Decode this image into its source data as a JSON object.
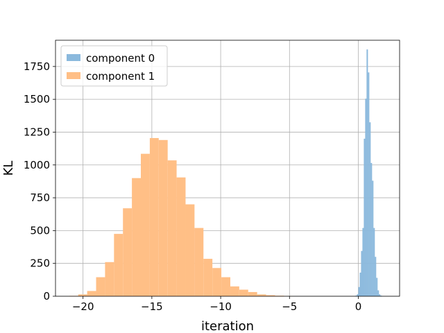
{
  "chart_data": {
    "type": "histogram",
    "xlabel": "iteration",
    "ylabel": "KL",
    "xlim": [
      -22,
      3
    ],
    "ylim": [
      0,
      1950
    ],
    "grid": true,
    "legend_position": "top-left",
    "x_ticks": [
      -20,
      -15,
      -10,
      -5,
      0
    ],
    "y_ticks": [
      0,
      250,
      500,
      750,
      1000,
      1250,
      1500,
      1750
    ],
    "series": [
      {
        "name": "component 1",
        "color": "#ffbf86",
        "bin_edges": [
          -21.0,
          -20.35,
          -19.7,
          -19.05,
          -18.4,
          -17.75,
          -17.1,
          -16.45,
          -15.8,
          -15.15,
          -14.5,
          -13.85,
          -13.2,
          -12.55,
          -11.9,
          -11.25,
          -10.6,
          -9.95,
          -9.3,
          -8.65,
          -8.0,
          -7.35,
          -6.7,
          -6.05,
          -5.4,
          -4.75,
          -4.1,
          -3.45,
          -2.8,
          -2.15,
          -1.5,
          -0.85
        ],
        "counts": [
          3,
          14,
          40,
          145,
          260,
          475,
          670,
          900,
          1085,
          1205,
          1190,
          1035,
          905,
          700,
          520,
          285,
          215,
          145,
          75,
          50,
          32,
          14,
          8,
          4,
          1,
          0,
          0,
          0,
          0,
          0,
          0
        ]
      },
      {
        "name": "component 0",
        "color": "#8bb9dd",
        "bin_edges": [
          -0.3,
          -0.2,
          -0.1,
          0.0,
          0.1,
          0.2,
          0.3,
          0.4,
          0.5,
          0.6,
          0.7,
          0.8,
          0.9,
          1.0,
          1.1,
          1.2,
          1.3,
          1.4,
          1.5,
          1.6,
          1.7,
          1.8,
          1.9
        ],
        "counts": [
          2,
          5,
          15,
          70,
          180,
          345,
          520,
          1200,
          1505,
          1880,
          1705,
          1325,
          1015,
          880,
          520,
          300,
          140,
          45,
          15,
          5,
          2,
          0
        ]
      }
    ]
  }
}
